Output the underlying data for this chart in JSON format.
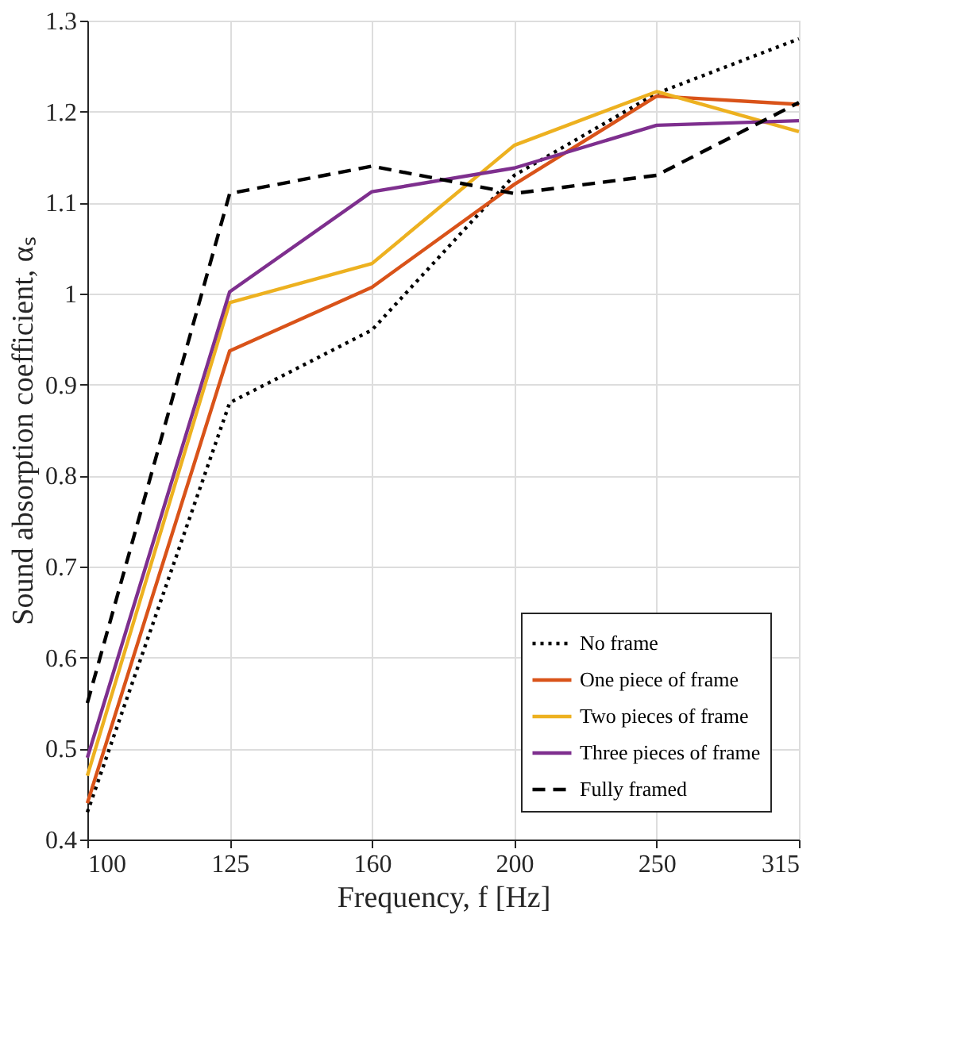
{
  "chart_data": {
    "type": "line",
    "xlabel": "Frequency, f [Hz]",
    "ylabel": "Sound absorption coefficient, αₛ",
    "categories": [
      "100",
      "125",
      "160",
      "200",
      "250",
      "315"
    ],
    "series": [
      {
        "name": "No frame",
        "color": "#000000",
        "line_style": "dotted",
        "values": [
          0.43,
          0.88,
          0.96,
          1.13,
          1.22,
          1.28
        ]
      },
      {
        "name": "One piece of frame",
        "color": "#d95319",
        "line_style": "solid",
        "values": [
          0.44,
          0.937,
          1.007,
          1.12,
          1.217,
          1.208
        ]
      },
      {
        "name": "Two pieces of frame",
        "color": "#edb120",
        "line_style": "solid",
        "values": [
          0.47,
          0.99,
          1.033,
          1.163,
          1.222,
          1.178
        ]
      },
      {
        "name": "Three pieces of frame",
        "color": "#7e2f8e",
        "line_style": "solid",
        "values": [
          0.49,
          1.002,
          1.112,
          1.138,
          1.185,
          1.19
        ]
      },
      {
        "name": "Fully framed",
        "color": "#000000",
        "line_style": "dashed",
        "values": [
          0.55,
          1.11,
          1.14,
          1.11,
          1.13,
          1.21
        ]
      }
    ],
    "ylim": [
      0.4,
      1.3
    ],
    "yticks": [
      0.4,
      0.5,
      0.6,
      0.7,
      0.8,
      0.9,
      1,
      1.1,
      1.2,
      1.3
    ],
    "grid": true,
    "legend": "bottom right"
  }
}
